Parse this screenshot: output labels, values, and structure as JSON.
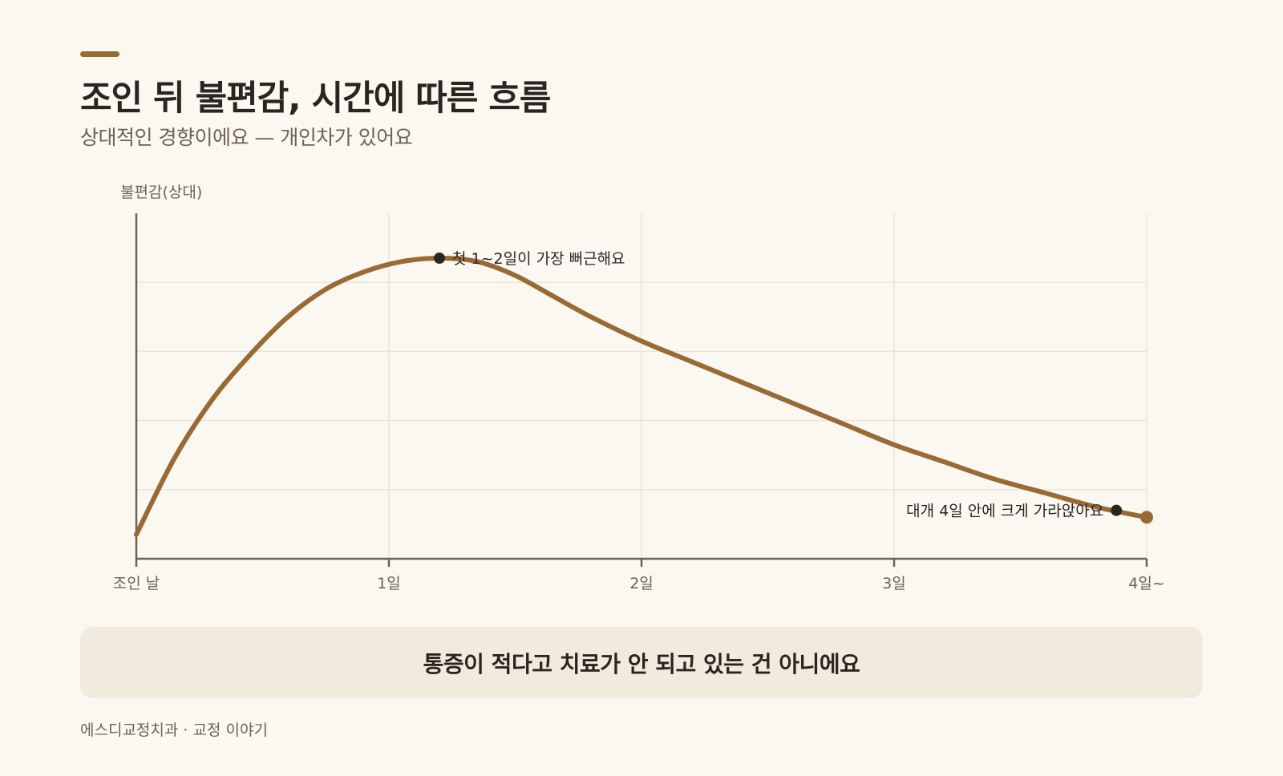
{
  "header": {
    "title": "조인 뒤 불편감, 시간에 따른 흐름",
    "subtitle": "상대적인 경향이에요 — 개인차가 있어요"
  },
  "colors": {
    "accent": "#9a6a34",
    "background": "#fbf8f2",
    "callout_bg": "#f2ebdd",
    "axis": "#6b6258",
    "grid": "#ece4d6",
    "marker": "#2b2520"
  },
  "chart_data": {
    "type": "line",
    "ylabel": "불편감(상대)",
    "xlabel": "",
    "x_ticks": [
      "조인 날",
      "1일",
      "2일",
      "3일",
      "4일~"
    ],
    "xlim": [
      0,
      4
    ],
    "ylim": [
      0,
      1
    ],
    "grid": true,
    "y_ticks_printed": false,
    "series": [
      {
        "x": [
          0,
          0.15,
          0.3,
          0.45,
          0.6,
          0.75,
          0.9,
          1.05,
          1.2,
          1.35,
          1.5,
          1.65,
          1.8,
          2.0,
          2.2,
          2.4,
          2.6,
          2.8,
          3.0,
          3.2,
          3.4,
          3.6,
          3.8,
          4.0
        ],
        "y": [
          0.07,
          0.29,
          0.46,
          0.59,
          0.7,
          0.78,
          0.83,
          0.86,
          0.87,
          0.86,
          0.82,
          0.76,
          0.7,
          0.63,
          0.57,
          0.51,
          0.45,
          0.39,
          0.33,
          0.28,
          0.23,
          0.19,
          0.15,
          0.12
        ]
      }
    ],
    "annotations": [
      {
        "x": 1.2,
        "y": 0.87,
        "text": "첫 1~2일이 가장 뻐근해요",
        "side": "right"
      },
      {
        "x": 3.88,
        "y": 0.14,
        "text": "대개 4일 안에 크게 가라앉아요",
        "side": "left"
      }
    ]
  },
  "callout": {
    "text": "통증이 적다고 치료가 안 되고 있는 건 아니에요"
  },
  "footer": {
    "text": "에스디교정치과 · 교정 이야기"
  }
}
